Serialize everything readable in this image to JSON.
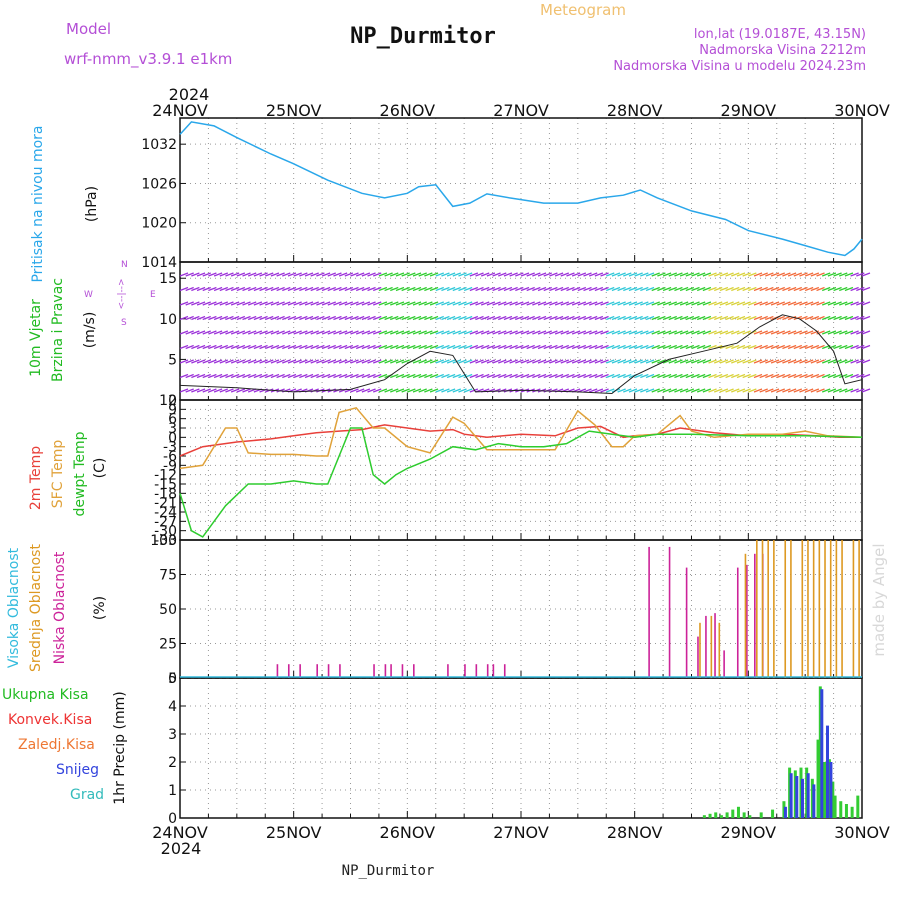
{
  "header": {
    "model_label": "Model",
    "model_name": "wrf-nmm_v3.9.1  e1km",
    "title": "NP_Durmitor",
    "meteogram_label": "Meteogram",
    "lonlat": "lon,lat (19.0187E, 43.15N)",
    "altitude": "Nadmorska Visina 2212m",
    "model_altitude": "Nadmorska Visina u modelu 2024.23m",
    "footer_station": "NP_Durmitor",
    "watermark": "made by Angel"
  },
  "colors": {
    "pressure": "#2aa7ea",
    "temp2m": "#e8403a",
    "sfc": "#e0a23a",
    "dew": "#2ecc2e",
    "cloud_high": "#33bbdd",
    "cloud_mid": "#dd9922",
    "cloud_low": "#cc2299",
    "rain_total": "#33cc33",
    "rain_conv": "#ee3333",
    "freezing": "#ee7733",
    "snow": "#3344dd",
    "hail": "#33bbbb",
    "purple": "#9b30d9"
  },
  "time_axis": {
    "year": "2024",
    "ticks": [
      "24NOV",
      "25NOV",
      "26NOV",
      "27NOV",
      "28NOV",
      "29NOV",
      "30NOV"
    ]
  },
  "panels": {
    "pressure": {
      "label": "Pritisak na nivou mora",
      "unit": "(hPa)"
    },
    "wind": {
      "label1": "10m Vjetar",
      "label2": "Brzina i Pravac",
      "unit": "(m/s)",
      "compass_n": "N",
      "compass_e": "E",
      "compass_w": "W",
      "compass_s": "S",
      "compass_arrows": "<--|-->"
    },
    "temp": {
      "label_2m": "2m Temp",
      "label_sfc": "SFC Temp",
      "label_dew": "dewpt Temp",
      "unit": "(C)"
    },
    "cloud": {
      "label_high": "Visoka Oblacnost",
      "label_mid": "Srednja Oblacnost",
      "label_low": "Niska Oblacnost",
      "unit": "(%)"
    },
    "precip": {
      "label_total": "Ukupna Kisa",
      "label_conv": "Konvek.Kisa",
      "label_freezing": "Zaledj.Kisa",
      "label_snow": "Snijeg",
      "label_hail": "Grad",
      "unit": "1hr Precip (mm)"
    }
  },
  "chart_data": [
    {
      "type": "line",
      "title": "",
      "ylabel": "Pritisak na nivou mora (hPa)",
      "x_unit": "days since 24NOV 00UTC",
      "ylim": [
        1014,
        1036
      ],
      "yticks": [
        1014,
        1020,
        1026,
        1032
      ],
      "series": [
        {
          "name": "Pritisak na nivou mora",
          "x": [
            0,
            0.1,
            0.3,
            0.5,
            0.8,
            1.0,
            1.3,
            1.6,
            1.8,
            2.0,
            2.1,
            2.25,
            2.4,
            2.55,
            2.7,
            2.9,
            3.2,
            3.5,
            3.7,
            3.9,
            4.05,
            4.2,
            4.5,
            4.8,
            5.0,
            5.3,
            5.5,
            5.7,
            5.85,
            5.93,
            6.0
          ],
          "values": [
            1033.5,
            1035.4,
            1034.8,
            1033.0,
            1030.5,
            1029.0,
            1026.5,
            1024.5,
            1023.8,
            1024.5,
            1025.5,
            1025.8,
            1022.5,
            1023.0,
            1024.4,
            1023.8,
            1023.0,
            1023.0,
            1023.8,
            1024.2,
            1025.0,
            1023.8,
            1021.8,
            1020.5,
            1018.8,
            1017.5,
            1016.5,
            1015.5,
            1015.0,
            1016.0,
            1017.5
          ]
        }
      ]
    },
    {
      "type": "line",
      "title": "",
      "ylabel": "10m Vjetar Brzina i Pravac (m/s)",
      "x_unit": "days since 24NOV 00UTC",
      "ylim": [
        0,
        17
      ],
      "yticks": [
        0,
        5,
        10,
        15
      ],
      "series": [
        {
          "name": "10m Vjetar",
          "x": [
            0,
            0.5,
            1.0,
            1.5,
            1.8,
            2.0,
            2.2,
            2.4,
            2.6,
            3.0,
            3.5,
            3.8,
            4.0,
            4.3,
            4.6,
            4.9,
            5.1,
            5.3,
            5.45,
            5.6,
            5.75,
            5.85,
            6.0
          ],
          "values": [
            1.8,
            1.5,
            1.0,
            1.3,
            2.5,
            4.5,
            6.0,
            5.5,
            1.0,
            1.2,
            1.0,
            0.8,
            3.0,
            5.0,
            6.0,
            7.0,
            9.0,
            10.5,
            10.0,
            8.5,
            6.0,
            2.0,
            2.5
          ]
        }
      ]
    },
    {
      "type": "line",
      "title": "",
      "ylabel": "Temp (C)",
      "x_unit": "days since 24NOV 00UTC",
      "ylim": [
        -33,
        12
      ],
      "yticks": [
        12,
        9,
        6,
        3,
        0,
        -3,
        -6,
        -9,
        -12,
        -15,
        -18,
        -21,
        -24,
        -27,
        -30,
        -33
      ],
      "series": [
        {
          "name": "2m Temp",
          "x": [
            0,
            0.2,
            0.5,
            0.8,
            1.0,
            1.2,
            1.4,
            1.6,
            1.8,
            2.0,
            2.2,
            2.4,
            2.5,
            2.7,
            3.0,
            3.3,
            3.5,
            3.7,
            3.9,
            4.0,
            4.2,
            4.4,
            4.7,
            5.0,
            5.3,
            5.6,
            5.8,
            6.0
          ],
          "values": [
            -6.0,
            -3.0,
            -1.5,
            -0.5,
            0.5,
            1.5,
            2.0,
            2.5,
            4.0,
            3.0,
            2.0,
            2.5,
            1.0,
            0.0,
            1.0,
            0.5,
            3.0,
            3.5,
            0.0,
            0.5,
            1.0,
            3.0,
            1.5,
            0.5,
            1.0,
            0.5,
            0.0,
            0.0
          ]
        },
        {
          "name": "SFC Temp",
          "x": [
            0,
            0.2,
            0.4,
            0.5,
            0.6,
            0.8,
            1.0,
            1.2,
            1.3,
            1.4,
            1.55,
            1.7,
            1.8,
            2.0,
            2.2,
            2.4,
            2.5,
            2.7,
            3.0,
            3.3,
            3.5,
            3.65,
            3.8,
            3.9,
            4.0,
            4.2,
            4.4,
            4.5,
            4.7,
            5.0,
            5.3,
            5.5,
            5.7,
            6.0
          ],
          "values": [
            -10.0,
            -9.0,
            3.0,
            3.0,
            -5.0,
            -5.5,
            -5.5,
            -6.0,
            -6.0,
            8.0,
            9.5,
            3.0,
            3.0,
            -3.0,
            -5.0,
            6.5,
            4.5,
            -4.0,
            -4.0,
            -4.0,
            8.5,
            4.0,
            -3.0,
            -3.0,
            0.5,
            1.0,
            7.0,
            2.0,
            0.0,
            1.0,
            1.0,
            2.0,
            0.5,
            0.0
          ]
        },
        {
          "name": "dewpt Temp",
          "x": [
            0,
            0.1,
            0.2,
            0.4,
            0.6,
            0.8,
            1.0,
            1.2,
            1.3,
            1.5,
            1.6,
            1.7,
            1.8,
            1.9,
            2.0,
            2.2,
            2.4,
            2.6,
            2.8,
            3.0,
            3.2,
            3.4,
            3.6,
            3.8,
            4.0,
            4.2,
            4.5,
            5.0,
            5.5,
            6.0
          ],
          "values": [
            -18.0,
            -30.0,
            -32.0,
            -22.0,
            -15.0,
            -15.0,
            -14.0,
            -15.0,
            -15.0,
            3.0,
            3.0,
            -12.0,
            -15.0,
            -12.0,
            -10.0,
            -7.0,
            -3.0,
            -4.0,
            -2.0,
            -3.0,
            -3.0,
            -2.0,
            2.0,
            1.0,
            0.0,
            1.0,
            1.0,
            0.5,
            0.5,
            0.0
          ]
        }
      ]
    },
    {
      "type": "bar",
      "title": "",
      "ylabel": "Oblacnost (%)",
      "x_unit": "days since 24NOV 00UTC",
      "ylim": [
        0,
        100
      ],
      "yticks": [
        0,
        25,
        50,
        75,
        100
      ],
      "series": [
        {
          "name": "Niska Oblacnost",
          "x": [
            0.85,
            0.95,
            1.05,
            1.2,
            1.3,
            1.4,
            1.7,
            1.8,
            1.85,
            1.95,
            2.05,
            2.35,
            2.5,
            2.6,
            2.7,
            2.75,
            2.85,
            4.12,
            4.3,
            4.45,
            4.55,
            4.62,
            4.7,
            4.78,
            4.9,
            4.98,
            5.05,
            5.12
          ],
          "values": [
            10,
            10,
            10,
            10,
            10,
            10,
            10,
            10,
            10,
            10,
            10,
            10,
            10,
            10,
            10,
            10,
            10,
            95,
            95,
            80,
            30,
            45,
            47,
            20,
            80,
            82,
            90,
            90
          ]
        },
        {
          "name": "Srednja Oblacnost",
          "x": [
            4.55,
            4.65,
            4.72,
            4.95,
            5.05,
            5.1,
            5.15,
            5.2,
            5.3,
            5.35,
            5.45,
            5.5,
            5.55,
            5.6,
            5.65,
            5.7,
            5.75,
            5.8,
            5.9,
            5.95
          ],
          "values": [
            40,
            45,
            40,
            90,
            100,
            100,
            100,
            100,
            100,
            100,
            100,
            100,
            100,
            100,
            100,
            100,
            100,
            100,
            100,
            100
          ]
        },
        {
          "name": "Visoka Oblacnost",
          "x": [],
          "values": []
        }
      ]
    },
    {
      "type": "bar",
      "title": "",
      "ylabel": "1hr Precip (mm)",
      "x_unit": "days since 24NOV 00UTC",
      "ylim": [
        0,
        5
      ],
      "yticks": [
        0,
        1,
        2,
        3,
        4,
        5
      ],
      "series": [
        {
          "name": "Ukupna Kisa",
          "x": [
            4.6,
            4.65,
            4.7,
            4.75,
            4.8,
            4.85,
            4.9,
            4.95,
            5.0,
            5.1,
            5.2,
            5.3,
            5.35,
            5.4,
            5.45,
            5.5,
            5.55,
            5.6,
            5.62,
            5.65,
            5.67,
            5.7,
            5.73,
            5.75,
            5.8,
            5.85,
            5.9,
            5.95
          ],
          "values": [
            0.1,
            0.15,
            0.2,
            0.1,
            0.2,
            0.3,
            0.4,
            0.2,
            0.1,
            0.2,
            0.3,
            0.6,
            1.8,
            1.7,
            1.8,
            1.8,
            1.4,
            2.8,
            4.7,
            2.0,
            2.0,
            2.1,
            1.3,
            0.8,
            0.6,
            0.5,
            0.4,
            0.8
          ]
        },
        {
          "name": "Snijeg",
          "x": [
            5.3,
            5.35,
            5.4,
            5.45,
            5.5,
            5.55,
            5.62,
            5.67,
            5.7
          ],
          "values": [
            0.4,
            1.6,
            1.5,
            1.4,
            1.6,
            1.2,
            4.6,
            3.3,
            2.0
          ]
        },
        {
          "name": "Konvek.Kisa",
          "x": [],
          "values": []
        },
        {
          "name": "Zaledj.Kisa",
          "x": [],
          "values": []
        },
        {
          "name": "Grad",
          "x": [],
          "values": []
        }
      ]
    }
  ]
}
